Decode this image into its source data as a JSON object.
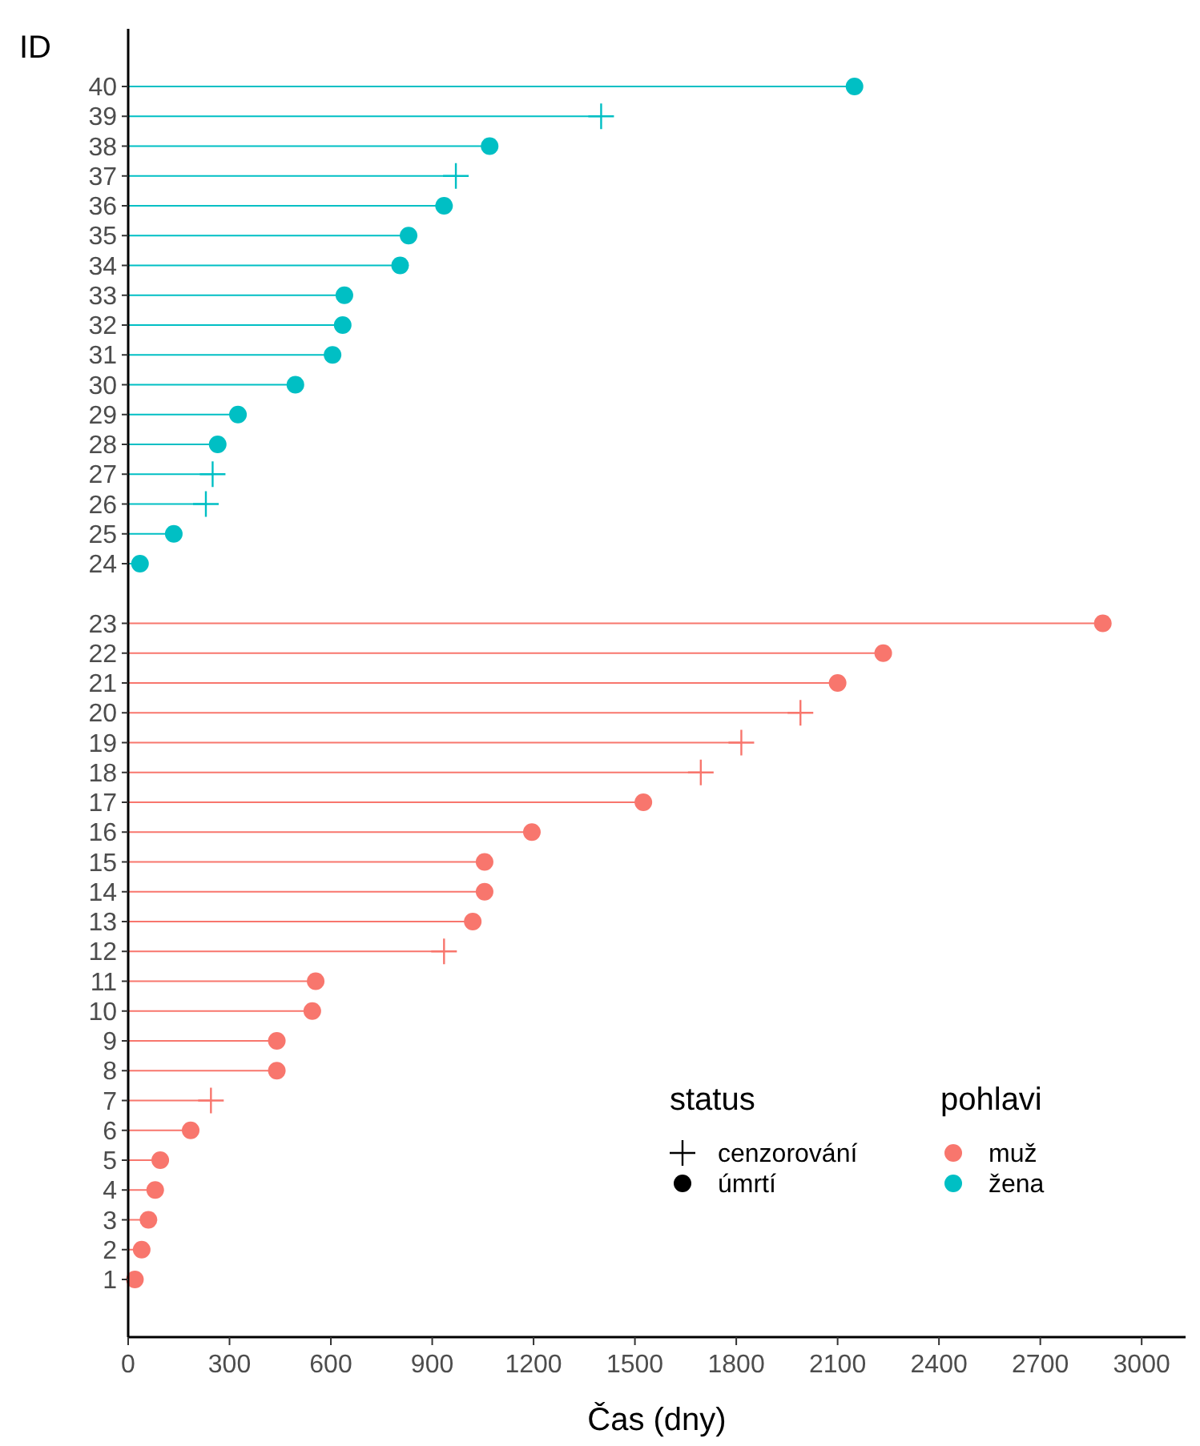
{
  "chart_data": {
    "type": "lollipop",
    "orientation": "horizontal",
    "xlabel": "Čas (dny)",
    "ylabel": "ID",
    "legend_title": [
      "status",
      "pohlavi"
    ],
    "legend": "bottom right",
    "annotations": [
      "cenzorování",
      "úmrtí"
    ],
    "categories": [
      "40",
      "39",
      "38",
      "37",
      "36",
      "35",
      "34",
      "33",
      "32",
      "31",
      "30",
      "29",
      "28",
      "27",
      "26",
      "25",
      "24",
      null,
      "23",
      "22",
      "21",
      "20",
      "19",
      "18",
      "17",
      "16",
      "15",
      "14",
      "13",
      "12",
      "11",
      "10",
      "9",
      "8",
      "7",
      "6",
      "5",
      "4",
      "3",
      "2",
      "1"
    ],
    "xlim": [
      0,
      3130
    ],
    "xticks": [
      0,
      300,
      600,
      900,
      1200,
      1500,
      1800,
      2100,
      2400,
      2700,
      3000
    ],
    "series": [
      {
        "color": "#f8766d",
        "marker": "cross",
        "values": [
          null,
          null,
          null,
          null,
          null,
          null,
          null,
          null,
          null,
          null,
          null,
          null,
          null,
          null,
          null,
          null,
          null,
          null,
          null,
          null,
          null,
          1990,
          1815,
          1695,
          null,
          null,
          null,
          null,
          null,
          935,
          null,
          null,
          null,
          null,
          245,
          null,
          null,
          null,
          null,
          null,
          null
        ]
      },
      {
        "name": "muž",
        "color": "#f8766d",
        "marker": "circle",
        "values": [
          null,
          null,
          null,
          null,
          null,
          null,
          null,
          null,
          null,
          null,
          null,
          null,
          null,
          null,
          null,
          null,
          null,
          null,
          2885,
          2235,
          2100,
          null,
          null,
          null,
          1525,
          1195,
          1055,
          1055,
          1020,
          null,
          555,
          545,
          440,
          440,
          null,
          185,
          95,
          80,
          60,
          40,
          20
        ]
      },
      {
        "color": "#00bfc4",
        "marker": "cross",
        "values": [
          null,
          1400,
          null,
          970,
          null,
          null,
          null,
          null,
          null,
          null,
          null,
          null,
          null,
          250,
          230,
          null,
          null,
          null,
          null,
          null,
          null,
          null,
          null,
          null,
          null,
          null,
          null,
          null,
          null,
          null,
          null,
          null,
          null,
          null,
          null,
          null,
          null,
          null,
          null,
          null,
          null
        ]
      },
      {
        "name": "žena",
        "color": "#00bfc4",
        "marker": "circle",
        "values": [
          2150,
          null,
          1070,
          null,
          935,
          830,
          805,
          640,
          635,
          605,
          495,
          325,
          265,
          null,
          null,
          135,
          35,
          null,
          null,
          null,
          null,
          null,
          null,
          null,
          null,
          null,
          null,
          null,
          null,
          null,
          null,
          null,
          null,
          null,
          null,
          null,
          null,
          null,
          null,
          null,
          null
        ]
      }
    ]
  }
}
